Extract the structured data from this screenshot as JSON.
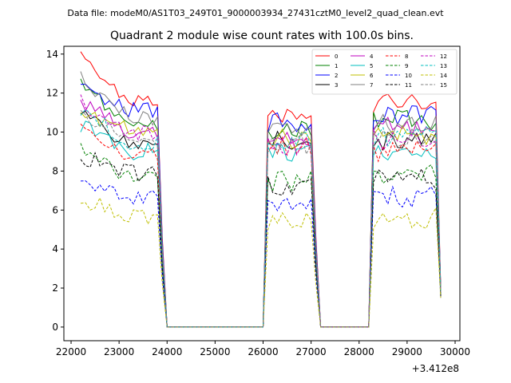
{
  "suptitle": "Data file: modeM0/AS1T03_249T01_9000003934_27431cztM0_level2_quad_clean.evt",
  "chart_data": {
    "type": "line",
    "title": "Quadrant 2 module wise count rates with 100.0s bins.",
    "xlabel": "",
    "ylabel": "",
    "x_offset_label": "+3.412e8",
    "xlim": [
      21850,
      30100
    ],
    "ylim": [
      -0.7,
      14.4
    ],
    "xticks": [
      22000,
      23000,
      24000,
      25000,
      26000,
      27000,
      28000,
      29000,
      30000
    ],
    "xtick_labels": [
      "22000",
      "23000",
      "24000",
      "25000",
      "26000",
      "27000",
      "28000",
      "29000",
      "30000"
    ],
    "yticks": [
      0,
      2,
      4,
      6,
      8,
      10,
      12,
      14
    ],
    "ytick_labels": [
      "0",
      "2",
      "4",
      "6",
      "8",
      "10",
      "12",
      "14"
    ],
    "segments": [
      {
        "start": 22200,
        "end": 23800
      },
      {
        "start": 26100,
        "end": 27000
      },
      {
        "start": 28300,
        "end": 29600
      }
    ],
    "gaps": [
      {
        "start": 24000,
        "end": 26000
      },
      {
        "start": 27200,
        "end": 28200
      }
    ],
    "legend_location": "top-right",
    "series": [
      {
        "name": "0",
        "color": "#ff0000",
        "dash": "solid",
        "level": 11.6,
        "start": 13.7,
        "seg_levels": [
          11.6,
          10.9,
          11.5
        ],
        "end": 2.0
      },
      {
        "name": "1",
        "color": "#008000",
        "dash": "solid",
        "level": 10.4,
        "start": 12.5,
        "seg_levels": [
          10.4,
          10.2,
          10.6
        ],
        "end": 1.9
      },
      {
        "name": "2",
        "color": "#0000ff",
        "dash": "solid",
        "level": 11.2,
        "start": 12.3,
        "seg_levels": [
          11.2,
          10.5,
          10.8
        ],
        "end": 1.9
      },
      {
        "name": "3",
        "color": "#000000",
        "dash": "solid",
        "level": 9.4,
        "start": 11.1,
        "seg_levels": [
          9.4,
          9.5,
          9.6
        ],
        "end": 1.8
      },
      {
        "name": "4",
        "color": "#bf00bf",
        "dash": "solid",
        "level": 10.0,
        "start": 11.6,
        "seg_levels": [
          10.0,
          9.8,
          10.2
        ],
        "end": 1.8
      },
      {
        "name": "5",
        "color": "#00bfbf",
        "dash": "solid",
        "level": 9.0,
        "start": 10.4,
        "seg_levels": [
          9.0,
          8.9,
          9.1
        ],
        "end": 1.7
      },
      {
        "name": "6",
        "color": "#bfbf00",
        "dash": "solid",
        "level": 10.1,
        "start": 10.9,
        "seg_levels": [
          10.1,
          9.7,
          9.9
        ],
        "end": 1.8
      },
      {
        "name": "7",
        "color": "#808080",
        "dash": "solid",
        "level": 10.7,
        "start": 12.7,
        "seg_levels": [
          10.7,
          10.3,
          10.4
        ],
        "end": 1.9
      },
      {
        "name": "8",
        "color": "#ff0000",
        "dash": "dashed",
        "level": 8.9,
        "start": 10.0,
        "seg_levels": [
          8.9,
          9.2,
          9.0
        ],
        "end": 1.7
      },
      {
        "name": "9",
        "color": "#008000",
        "dash": "dashed",
        "level": 7.7,
        "start": 9.0,
        "seg_levels": [
          7.7,
          7.5,
          7.8
        ],
        "end": 1.6
      },
      {
        "name": "10",
        "color": "#0000ff",
        "dash": "dashed",
        "level": 6.6,
        "start": 7.3,
        "seg_levels": [
          6.6,
          6.4,
          6.7
        ],
        "end": 1.5
      },
      {
        "name": "11",
        "color": "#000000",
        "dash": "dashed",
        "level": 7.9,
        "start": 8.8,
        "seg_levels": [
          7.9,
          7.3,
          7.6
        ],
        "end": 1.6
      },
      {
        "name": "12",
        "color": "#bf00bf",
        "dash": "dashed",
        "level": 9.9,
        "start": 11.5,
        "seg_levels": [
          9.9,
          9.3,
          9.6
        ],
        "end": 1.8
      },
      {
        "name": "13",
        "color": "#00bfbf",
        "dash": "dashed",
        "level": 9.5,
        "start": 11.2,
        "seg_levels": [
          9.5,
          9.6,
          9.8
        ],
        "end": 1.8
      },
      {
        "name": "14",
        "color": "#bfbf00",
        "dash": "dashed",
        "level": 5.6,
        "start": 6.6,
        "seg_levels": [
          5.6,
          5.5,
          5.6
        ],
        "end": 1.5
      },
      {
        "name": "15",
        "color": "#808080",
        "dash": "dashed",
        "level": 9.6,
        "start": 11.0,
        "seg_levels": [
          9.6,
          9.4,
          9.7
        ],
        "end": 1.8
      }
    ]
  }
}
